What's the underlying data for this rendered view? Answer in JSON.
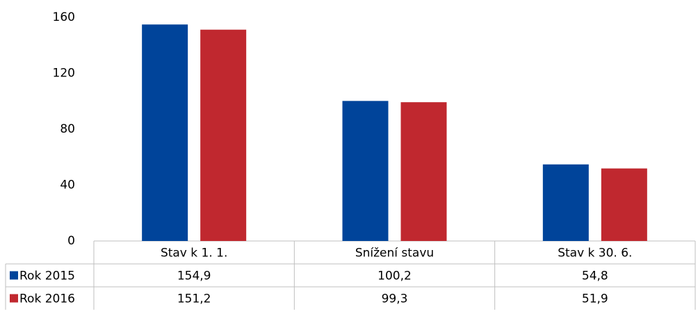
{
  "chart_data": {
    "type": "bar",
    "categories": [
      "Stav k 1. 1.",
      "Snížení stavu",
      "Stav k 30. 6."
    ],
    "series": [
      {
        "name": "Rok 2015",
        "color": "#00449a",
        "values": [
          154.9,
          100.2,
          54.8
        ],
        "value_labels": [
          "154,9",
          "100,2",
          "54,8"
        ]
      },
      {
        "name": "Rok 2016",
        "color": "#c0282f",
        "values": [
          151.2,
          99.3,
          51.9
        ],
        "value_labels": [
          "151,2",
          "99,3",
          "51,9"
        ]
      }
    ],
    "ylim": [
      0,
      160
    ],
    "yticks": [
      0,
      40,
      80,
      120,
      160
    ],
    "grid": false,
    "data_table": true
  }
}
